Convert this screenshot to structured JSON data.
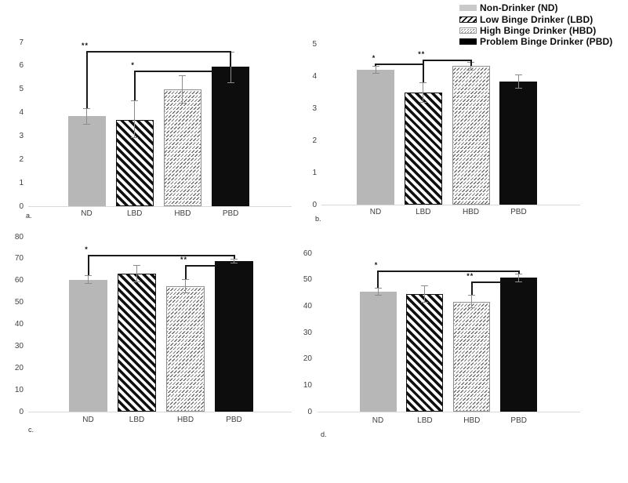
{
  "legend": {
    "items": [
      {
        "label": "Non-Drinker (ND)",
        "pattern": "solid-gray"
      },
      {
        "label": "Low Binge Drinker (LBD)",
        "pattern": "diagonal-stripes"
      },
      {
        "label": "High Binge Drinker (HBD)",
        "pattern": "fine-hatch"
      },
      {
        "label": "Problem Binge Drinker (PBD)",
        "pattern": "solid-black"
      }
    ]
  },
  "colors": {
    "bar_gray": "#b7b7b7",
    "bar_black": "#0d0d0d",
    "axis_line": "#d9d9d9",
    "error_bar": "#8c8c8c",
    "bracket": "#1a1a1a",
    "text": "#3f3f3f"
  },
  "chart_data": [
    {
      "panel_label": "a.",
      "type": "bar",
      "categories": [
        "ND",
        "LBD",
        "HBD",
        "PBD"
      ],
      "values": [
        3.85,
        3.7,
        5.0,
        5.95
      ],
      "error_ranges": [
        [
          3.5,
          4.2
        ],
        [
          2.9,
          4.52
        ],
        [
          4.4,
          5.6
        ],
        [
          5.25,
          6.6
        ]
      ],
      "ylim": [
        0,
        7
      ],
      "ytick_step": 1,
      "grid": false,
      "significance": [
        {
          "from": "ND",
          "to": "PBD",
          "label": "**",
          "line_y": 6.62,
          "drop_from": 4.2,
          "drop_to": 5.95,
          "attach_to": "center"
        },
        {
          "from": "LBD",
          "to": "PBD",
          "label": "*",
          "line_y": 5.78,
          "drop_from": 4.52,
          "drop_to": null,
          "attach_to": "edge"
        }
      ]
    },
    {
      "panel_label": "b.",
      "type": "bar",
      "categories": [
        "ND",
        "LBD",
        "HBD",
        "PBD"
      ],
      "values": [
        4.2,
        3.48,
        4.32,
        3.82
      ],
      "error_ranges": [
        [
          4.08,
          4.32
        ],
        [
          3.16,
          3.8
        ],
        [
          4.18,
          4.44
        ],
        [
          3.6,
          4.05
        ]
      ],
      "ylim": [
        0,
        5
      ],
      "ytick_step": 1,
      "grid": false,
      "significance": [
        {
          "from": "ND",
          "to": "LBD",
          "label": "*",
          "line_y": 4.39,
          "drop_from": 4.32,
          "drop_to": 3.8,
          "attach_to": "center"
        },
        {
          "from": "LBD",
          "to": "HBD",
          "label": "**",
          "line_y": 4.51,
          "drop_from": 3.8,
          "drop_to": 4.32,
          "attach_to": "center"
        }
      ]
    },
    {
      "panel_label": "c.",
      "type": "bar",
      "categories": [
        "ND",
        "LBD",
        "HBD",
        "PBD"
      ],
      "values": [
        60.3,
        63.2,
        57.5,
        68.8
      ],
      "error_ranges": [
        [
          58.3,
          62.4
        ],
        [
          59.3,
          67.2
        ],
        [
          54.3,
          60.7
        ],
        [
          67.7,
          69.9
        ]
      ],
      "ylim": [
        0,
        80
      ],
      "ytick_step": 10,
      "grid": false,
      "significance": [
        {
          "from": "ND",
          "to": "PBD",
          "label": "*",
          "line_y": 71.9,
          "drop_from": 62.4,
          "drop_to": 69.9,
          "attach_to": "center"
        },
        {
          "from": "HBD",
          "to": "PBD",
          "label": "**",
          "line_y": 67.2,
          "drop_from": 60.7,
          "drop_to": null,
          "attach_to": "edge"
        }
      ]
    },
    {
      "panel_label": "d.",
      "type": "bar",
      "categories": [
        "ND",
        "LBD",
        "HBD",
        "PBD"
      ],
      "values": [
        45.4,
        44.6,
        41.7,
        50.7
      ],
      "error_ranges": [
        [
          43.9,
          46.9
        ],
        [
          41.3,
          47.9
        ],
        [
          39.2,
          44.2
        ],
        [
          49.0,
          52.3
        ]
      ],
      "ylim": [
        0,
        60
      ],
      "ytick_step": 10,
      "grid": false,
      "significance": [
        {
          "from": "ND",
          "to": "PBD",
          "label": "*",
          "line_y": 53.6,
          "drop_from": 46.9,
          "drop_to": 52.3,
          "attach_to": "center"
        },
        {
          "from": "HBD",
          "to": "PBD",
          "label": "**",
          "line_y": 49.3,
          "drop_from": 44.2,
          "drop_to": null,
          "attach_to": "edge"
        }
      ]
    }
  ]
}
